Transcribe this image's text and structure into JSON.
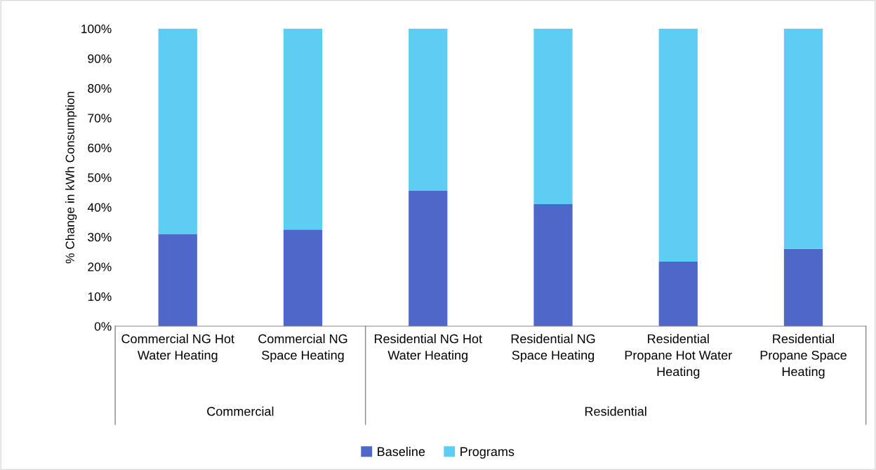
{
  "chart_data": {
    "type": "bar",
    "stacked": true,
    "ylabel": "% Change in kWh Consumption",
    "categories": [
      "Commercial NG Hot Water Heating",
      "Commercial NG Space Heating",
      "Residential NG Hot Water Heating",
      "Residential NG Space Heating",
      "Residential Propane Hot Water Heating",
      "Residential Propane Space Heating"
    ],
    "series": [
      {
        "name": "Baseline",
        "color": "#4f67c9",
        "values": [
          31,
          32.5,
          45.5,
          41,
          21.7,
          26
        ]
      },
      {
        "name": "Programs",
        "color": "#5ecdf3",
        "values": [
          69,
          67.5,
          54.5,
          59,
          78.3,
          74
        ]
      }
    ],
    "ylim": [
      0,
      100
    ],
    "yticks": [
      {
        "value": 0,
        "label": "0%"
      },
      {
        "value": 10,
        "label": "10%"
      },
      {
        "value": 20,
        "label": "20%"
      },
      {
        "value": 30,
        "label": "30%"
      },
      {
        "value": 40,
        "label": "40%"
      },
      {
        "value": 50,
        "label": "50%"
      },
      {
        "value": 60,
        "label": "60%"
      },
      {
        "value": 70,
        "label": "70%"
      },
      {
        "value": 80,
        "label": "80%"
      },
      {
        "value": 90,
        "label": "90%"
      },
      {
        "value": 100,
        "label": "100%"
      }
    ],
    "annotations": [
      "Commercial",
      "Residential"
    ],
    "grid": false,
    "legend": "bottom"
  }
}
